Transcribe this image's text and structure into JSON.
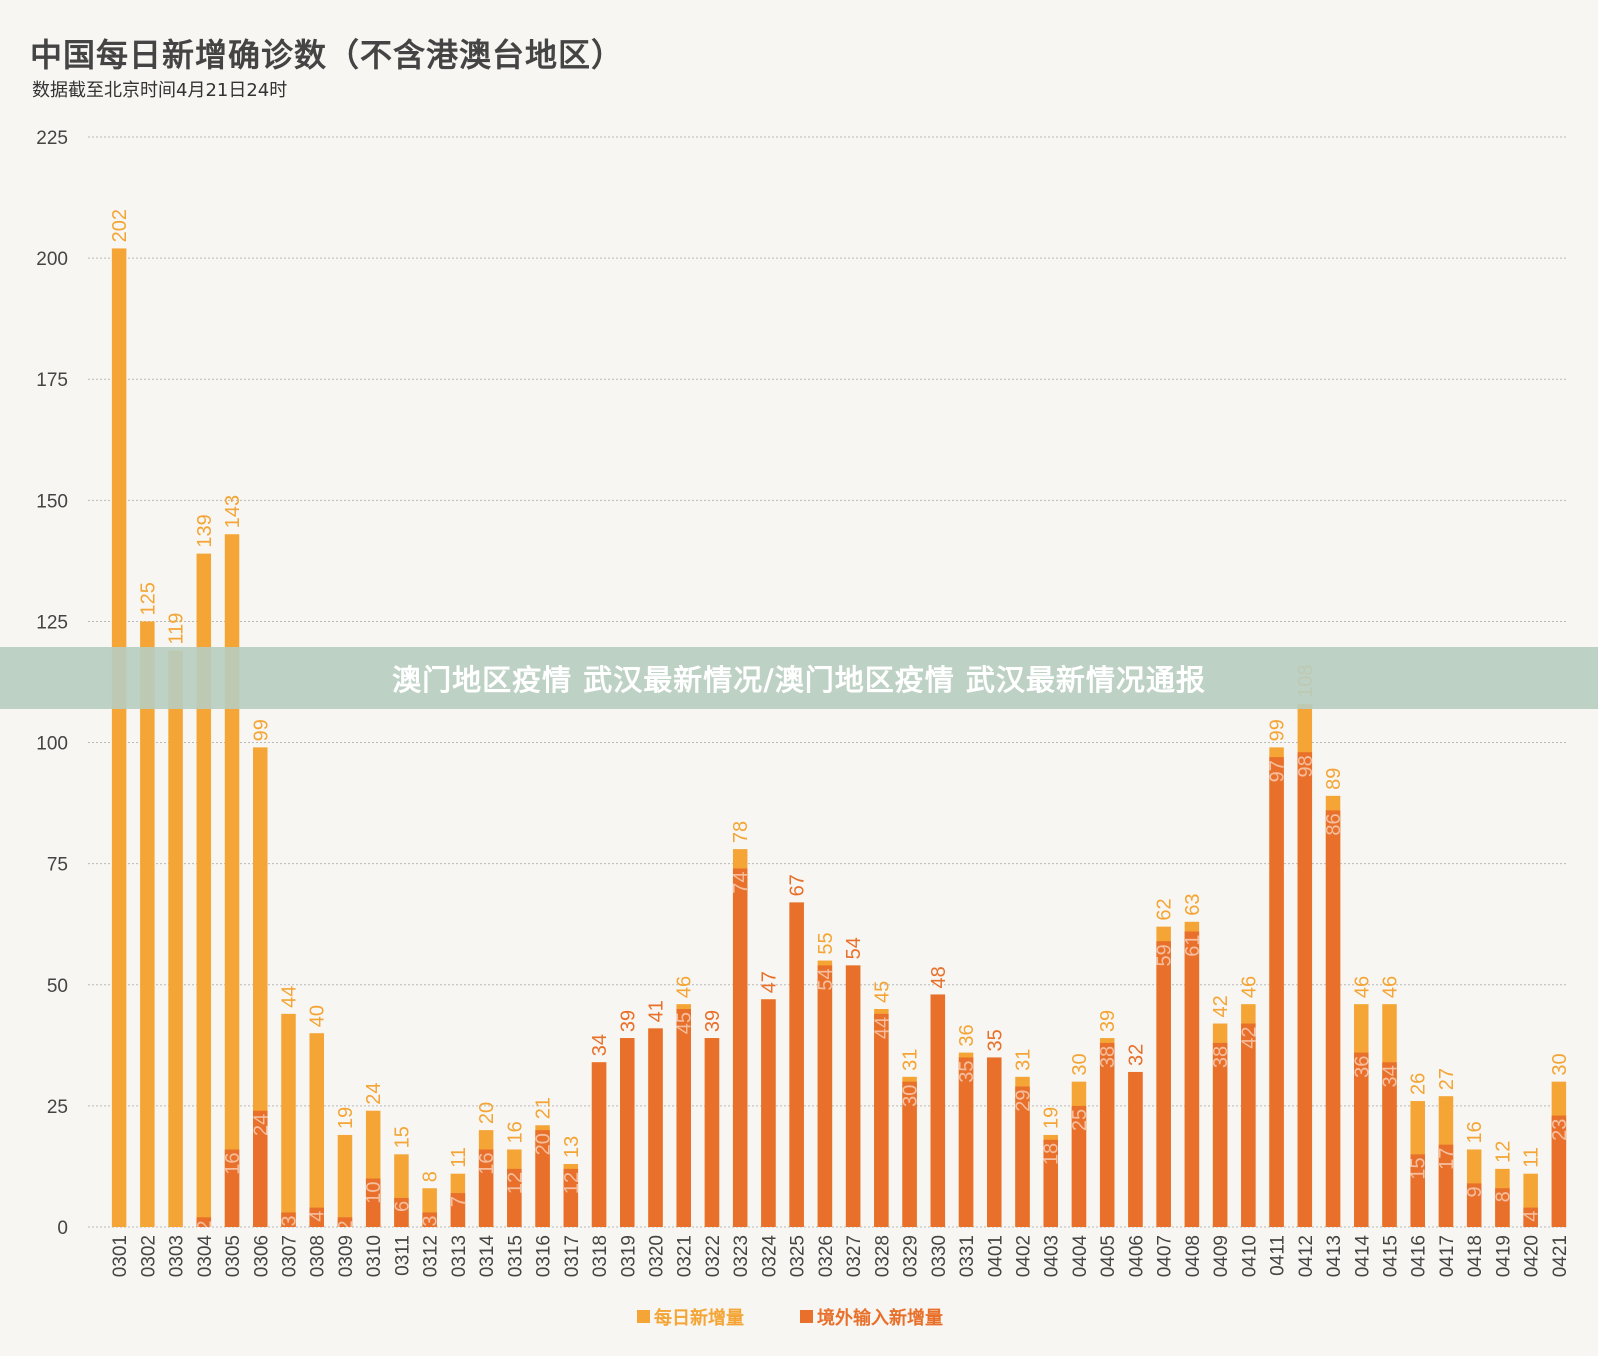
{
  "chart_data": {
    "type": "bar",
    "title": "中国每日新增确诊数（不含港澳台地区）",
    "subtitle": "数据截至北京时间4月21日24时",
    "xlabel": "",
    "ylabel": "",
    "ylim": [
      0,
      225
    ],
    "yticks": [
      "0",
      "25",
      "50",
      "75",
      "100",
      "125",
      "150",
      "175",
      "200",
      "225"
    ],
    "grid": true,
    "legend_position": "bottom-center",
    "categories": [
      "0301",
      "0302",
      "0303",
      "0304",
      "0305",
      "0306",
      "0307",
      "0308",
      "0309",
      "0310",
      "0311",
      "0312",
      "0313",
      "0314",
      "0315",
      "0316",
      "0317",
      "0318",
      "0319",
      "0320",
      "0321",
      "0322",
      "0323",
      "0324",
      "0325",
      "0326",
      "0327",
      "0328",
      "0329",
      "0330",
      "0331",
      "0401",
      "0402",
      "0403",
      "0404",
      "0405",
      "0406",
      "0407",
      "0408",
      "0409",
      "0410",
      "0411",
      "0412",
      "0413",
      "0414",
      "0415",
      "0416",
      "0417",
      "0418",
      "0419",
      "0420",
      "0421"
    ],
    "series": [
      {
        "name": "每日新增量",
        "color": "#f4a535",
        "values": [
          202,
          125,
          119,
          139,
          143,
          99,
          44,
          40,
          19,
          24,
          15,
          8,
          11,
          20,
          16,
          21,
          13,
          34,
          39,
          41,
          46,
          39,
          78,
          47,
          67,
          55,
          54,
          45,
          31,
          48,
          36,
          35,
          31,
          19,
          30,
          39,
          32,
          62,
          63,
          42,
          46,
          99,
          108,
          89,
          46,
          46,
          26,
          27,
          16,
          12,
          11,
          30
        ]
      },
      {
        "name": "境外输入新增量",
        "color": "#e8702a",
        "values": [
          0,
          0,
          0,
          2,
          16,
          24,
          3,
          4,
          2,
          10,
          6,
          3,
          7,
          16,
          12,
          20,
          12,
          34,
          39,
          41,
          45,
          39,
          74,
          47,
          67,
          54,
          54,
          44,
          30,
          48,
          35,
          35,
          29,
          18,
          25,
          38,
          32,
          59,
          61,
          38,
          42,
          97,
          98,
          86,
          36,
          34,
          15,
          17,
          9,
          8,
          4,
          23
        ]
      }
    ]
  },
  "banner": {
    "text": "澳门地区疫情 武汉最新情况/澳门地区疫情 武汉最新情况通报"
  }
}
